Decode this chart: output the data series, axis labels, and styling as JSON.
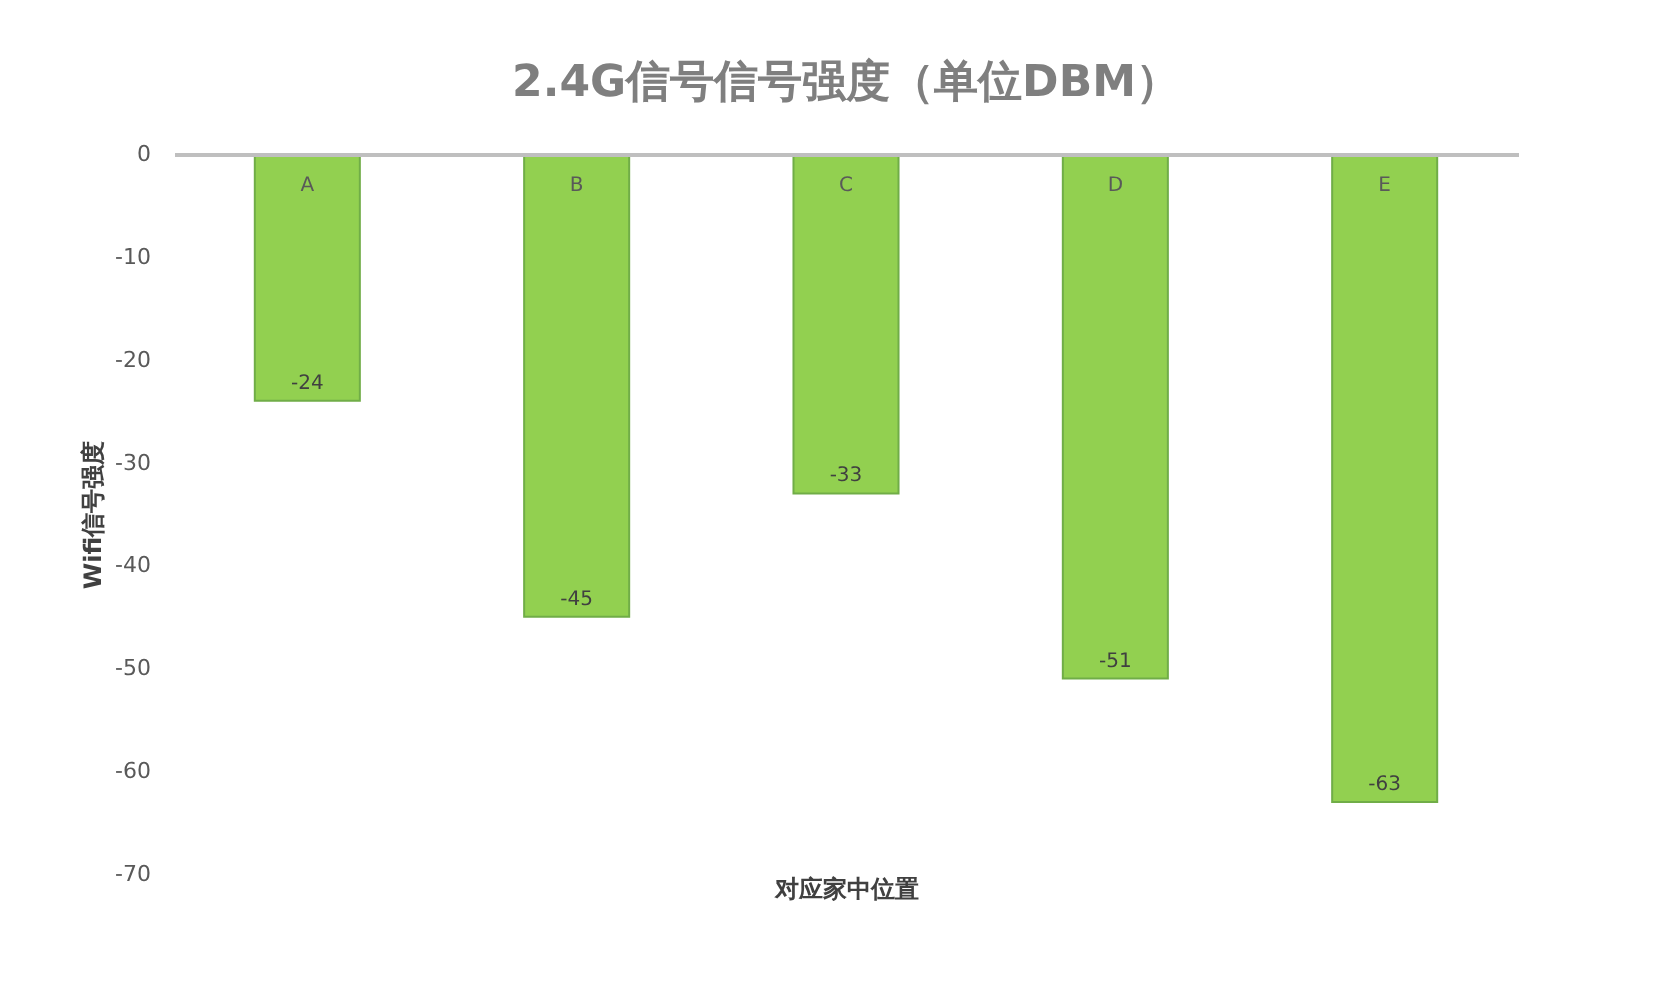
{
  "chart_data": {
    "type": "bar",
    "title": "2.4G信号信号强度（单位DBM）",
    "xlabel": "对应家中位置",
    "ylabel": "Wifi信号强度",
    "categories": [
      "A",
      "B",
      "C",
      "D",
      "E"
    ],
    "values": [
      -24,
      -45,
      -33,
      -51,
      -63
    ],
    "color": "#92d050",
    "ylim": [
      -70,
      0
    ],
    "yticks": [
      0,
      -10,
      -20,
      -30,
      -40,
      -50,
      -60,
      -70
    ],
    "data_labels": true,
    "grid": false
  }
}
